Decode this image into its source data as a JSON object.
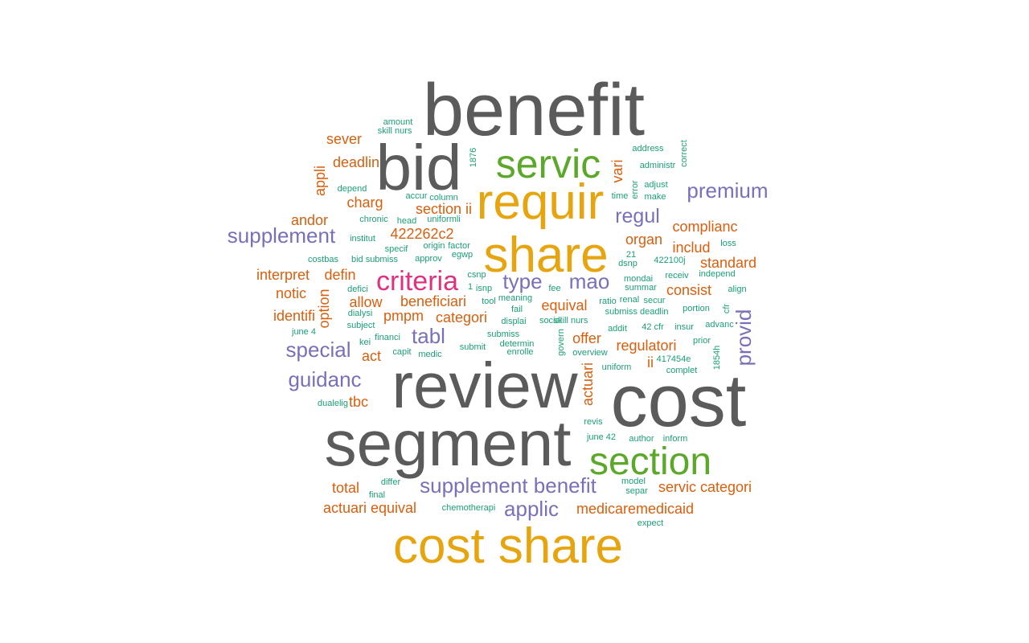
{
  "palette": {
    "gray": "#5b5b5b",
    "gold": "#e6a50f",
    "green": "#5ba82a",
    "purple": "#7870b8",
    "magenta": "#e0317f",
    "orange": "#d95f0e",
    "teal": "#1b9e77"
  },
  "words": [
    {
      "text": "benefit",
      "size": 92,
      "color": "gray"
    },
    {
      "text": "bid",
      "size": 80,
      "color": "gray"
    },
    {
      "text": "review",
      "size": 80,
      "color": "gray"
    },
    {
      "text": "cost",
      "size": 92,
      "color": "gray"
    },
    {
      "text": "segment",
      "size": 80,
      "color": "gray"
    },
    {
      "text": "requir",
      "size": 62,
      "color": "gold"
    },
    {
      "text": "share",
      "size": 62,
      "color": "gold"
    },
    {
      "text": "cost share",
      "size": 62,
      "color": "gold"
    },
    {
      "text": "servic",
      "size": 50,
      "color": "green"
    },
    {
      "text": "section",
      "size": 48,
      "color": "green"
    },
    {
      "text": "criteria",
      "size": 34,
      "color": "magenta"
    },
    {
      "text": "premium",
      "size": 26,
      "color": "purple"
    },
    {
      "text": "supplement",
      "size": 26,
      "color": "purple"
    },
    {
      "text": "regul",
      "size": 25,
      "color": "purple"
    },
    {
      "text": "type",
      "size": 26,
      "color": "purple"
    },
    {
      "text": "mao",
      "size": 26,
      "color": "purple"
    },
    {
      "text": "tabl",
      "size": 26,
      "color": "purple"
    },
    {
      "text": "special",
      "size": 26,
      "color": "purple"
    },
    {
      "text": "guidanc",
      "size": 26,
      "color": "purple"
    },
    {
      "text": "provid",
      "size": 26,
      "color": "purple"
    },
    {
      "text": "supplement benefit",
      "size": 26,
      "color": "purple"
    },
    {
      "text": "applic",
      "size": 26,
      "color": "purple"
    },
    {
      "text": "sever",
      "size": 18,
      "color": "orange"
    },
    {
      "text": "appli",
      "size": 18,
      "color": "orange"
    },
    {
      "text": "deadlin",
      "size": 18,
      "color": "orange"
    },
    {
      "text": "charg",
      "size": 18,
      "color": "orange"
    },
    {
      "text": "section ii",
      "size": 18,
      "color": "orange"
    },
    {
      "text": "andor",
      "size": 18,
      "color": "orange"
    },
    {
      "text": "422262c2",
      "size": 18,
      "color": "orange"
    },
    {
      "text": "vari",
      "size": 18,
      "color": "orange"
    },
    {
      "text": "complianc",
      "size": 18,
      "color": "orange"
    },
    {
      "text": "organ",
      "size": 18,
      "color": "orange"
    },
    {
      "text": "includ",
      "size": 18,
      "color": "orange"
    },
    {
      "text": "standard",
      "size": 18,
      "color": "orange"
    },
    {
      "text": "interpret",
      "size": 18,
      "color": "orange"
    },
    {
      "text": "defin",
      "size": 18,
      "color": "orange"
    },
    {
      "text": "notic",
      "size": 18,
      "color": "orange"
    },
    {
      "text": "consist",
      "size": 18,
      "color": "orange"
    },
    {
      "text": "allow",
      "size": 18,
      "color": "orange"
    },
    {
      "text": "beneficiari",
      "size": 18,
      "color": "orange"
    },
    {
      "text": "identifi",
      "size": 18,
      "color": "orange"
    },
    {
      "text": "option",
      "size": 18,
      "color": "orange"
    },
    {
      "text": "pmpm",
      "size": 18,
      "color": "orange"
    },
    {
      "text": "categori",
      "size": 18,
      "color": "orange"
    },
    {
      "text": "equival",
      "size": 18,
      "color": "orange"
    },
    {
      "text": "offer",
      "size": 18,
      "color": "orange"
    },
    {
      "text": "act",
      "size": 18,
      "color": "orange"
    },
    {
      "text": "regulatori",
      "size": 18,
      "color": "orange"
    },
    {
      "text": "ii",
      "size": 18,
      "color": "orange"
    },
    {
      "text": "actuari",
      "size": 18,
      "color": "orange"
    },
    {
      "text": "tbc",
      "size": 18,
      "color": "orange"
    },
    {
      "text": "total",
      "size": 18,
      "color": "orange"
    },
    {
      "text": "servic categori",
      "size": 18,
      "color": "orange"
    },
    {
      "text": "actuari equival",
      "size": 18,
      "color": "orange"
    },
    {
      "text": "medicaremedicaid",
      "size": 18,
      "color": "orange"
    },
    {
      "text": "amount",
      "size": 11,
      "color": "teal"
    },
    {
      "text": "skill nurs",
      "size": 11,
      "color": "teal"
    },
    {
      "text": "1876",
      "size": 11,
      "color": "teal"
    },
    {
      "text": "address",
      "size": 11,
      "color": "teal"
    },
    {
      "text": "correct",
      "size": 11,
      "color": "teal"
    },
    {
      "text": "administr",
      "size": 11,
      "color": "teal"
    },
    {
      "text": "depend",
      "size": 11,
      "color": "teal"
    },
    {
      "text": "accur",
      "size": 11,
      "color": "teal"
    },
    {
      "text": "column",
      "size": 11,
      "color": "teal"
    },
    {
      "text": "time",
      "size": 11,
      "color": "teal"
    },
    {
      "text": "error",
      "size": 11,
      "color": "teal"
    },
    {
      "text": "adjust",
      "size": 11,
      "color": "teal"
    },
    {
      "text": "make",
      "size": 11,
      "color": "teal"
    },
    {
      "text": "chronic",
      "size": 11,
      "color": "teal"
    },
    {
      "text": "head",
      "size": 11,
      "color": "teal"
    },
    {
      "text": "uniformli",
      "size": 11,
      "color": "teal"
    },
    {
      "text": "institut",
      "size": 11,
      "color": "teal"
    },
    {
      "text": "specif",
      "size": 11,
      "color": "teal"
    },
    {
      "text": "origin",
      "size": 11,
      "color": "teal"
    },
    {
      "text": "factor",
      "size": 11,
      "color": "teal"
    },
    {
      "text": "loss",
      "size": 11,
      "color": "teal"
    },
    {
      "text": "costbas",
      "size": 11,
      "color": "teal"
    },
    {
      "text": "bid submiss",
      "size": 11,
      "color": "teal"
    },
    {
      "text": "approv",
      "size": 11,
      "color": "teal"
    },
    {
      "text": "egwp",
      "size": 11,
      "color": "teal"
    },
    {
      "text": "21",
      "size": 11,
      "color": "teal"
    },
    {
      "text": "dsnp",
      "size": 11,
      "color": "teal"
    },
    {
      "text": "422100j",
      "size": 11,
      "color": "teal"
    },
    {
      "text": "csnp",
      "size": 11,
      "color": "teal"
    },
    {
      "text": "mondai",
      "size": 11,
      "color": "teal"
    },
    {
      "text": "receiv",
      "size": 11,
      "color": "teal"
    },
    {
      "text": "independ",
      "size": 11,
      "color": "teal"
    },
    {
      "text": "defici",
      "size": 11,
      "color": "teal"
    },
    {
      "text": "1",
      "size": 11,
      "color": "teal"
    },
    {
      "text": "isnp",
      "size": 11,
      "color": "teal"
    },
    {
      "text": "fee",
      "size": 11,
      "color": "teal"
    },
    {
      "text": "summar",
      "size": 11,
      "color": "teal"
    },
    {
      "text": "align",
      "size": 11,
      "color": "teal"
    },
    {
      "text": "meaning",
      "size": 11,
      "color": "teal"
    },
    {
      "text": "tool",
      "size": 11,
      "color": "teal"
    },
    {
      "text": "renal",
      "size": 11,
      "color": "teal"
    },
    {
      "text": "secur",
      "size": 11,
      "color": "teal"
    },
    {
      "text": "dialysi",
      "size": 11,
      "color": "teal"
    },
    {
      "text": "fail",
      "size": 11,
      "color": "teal"
    },
    {
      "text": "ratio",
      "size": 11,
      "color": "teal"
    },
    {
      "text": "portion",
      "size": 11,
      "color": "teal"
    },
    {
      "text": "cfr",
      "size": 11,
      "color": "teal"
    },
    {
      "text": "displai",
      "size": 11,
      "color": "teal"
    },
    {
      "text": "social",
      "size": 11,
      "color": "teal"
    },
    {
      "text": "skill nurs",
      "size": 11,
      "color": "teal"
    },
    {
      "text": "submiss deadlin",
      "size": 11,
      "color": "teal"
    },
    {
      "text": "subject",
      "size": 11,
      "color": "teal"
    },
    {
      "text": "june 4",
      "size": 11,
      "color": "teal"
    },
    {
      "text": "submiss",
      "size": 11,
      "color": "teal"
    },
    {
      "text": "addit",
      "size": 11,
      "color": "teal"
    },
    {
      "text": "42 cfr",
      "size": 11,
      "color": "teal"
    },
    {
      "text": "insur",
      "size": 11,
      "color": "teal"
    },
    {
      "text": "advanc",
      "size": 11,
      "color": "teal"
    },
    {
      "text": "kei",
      "size": 11,
      "color": "teal"
    },
    {
      "text": "financi",
      "size": 11,
      "color": "teal"
    },
    {
      "text": "determin",
      "size": 11,
      "color": "teal"
    },
    {
      "text": "prior",
      "size": 11,
      "color": "teal"
    },
    {
      "text": "capit",
      "size": 11,
      "color": "teal"
    },
    {
      "text": "submit",
      "size": 11,
      "color": "teal"
    },
    {
      "text": "govern",
      "size": 11,
      "color": "teal"
    },
    {
      "text": "enrolle",
      "size": 11,
      "color": "teal"
    },
    {
      "text": "overview",
      "size": 11,
      "color": "teal"
    },
    {
      "text": "medic",
      "size": 11,
      "color": "teal"
    },
    {
      "text": "417454e",
      "size": 11,
      "color": "teal"
    },
    {
      "text": "1854h",
      "size": 11,
      "color": "teal"
    },
    {
      "text": "uniform",
      "size": 11,
      "color": "teal"
    },
    {
      "text": "complet",
      "size": 11,
      "color": "teal"
    },
    {
      "text": "dualelig",
      "size": 11,
      "color": "teal"
    },
    {
      "text": "revis",
      "size": 11,
      "color": "teal"
    },
    {
      "text": "june 42",
      "size": 11,
      "color": "teal"
    },
    {
      "text": "author",
      "size": 11,
      "color": "teal"
    },
    {
      "text": "inform",
      "size": 11,
      "color": "teal"
    },
    {
      "text": "differ",
      "size": 11,
      "color": "teal"
    },
    {
      "text": "model",
      "size": 11,
      "color": "teal"
    },
    {
      "text": "final",
      "size": 11,
      "color": "teal"
    },
    {
      "text": "separ",
      "size": 11,
      "color": "teal"
    },
    {
      "text": "chemotherapi",
      "size": 11,
      "color": "teal"
    },
    {
      "text": "expect",
      "size": 11,
      "color": "teal"
    }
  ]
}
